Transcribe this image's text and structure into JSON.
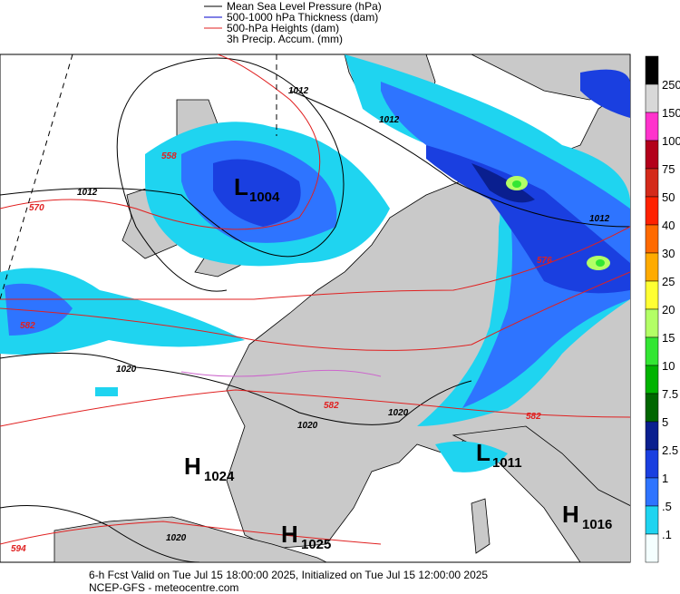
{
  "legend": [
    "Mean Sea Level Pressure (hPa)",
    "500-1000 hPa Thickness (dam)",
    "500-hPa Heights (dam)",
    "3h Precip. Accum. (mm)"
  ],
  "colorbar": {
    "labels": [
      "250",
      "150",
      "100",
      "75",
      "50",
      "40",
      "30",
      "25",
      "20",
      "15",
      "10",
      "7.5",
      "5",
      "2.5",
      "1",
      ".5",
      ".1"
    ],
    "colors": [
      "#000000",
      "#d8d8d8",
      "#ff33cc",
      "#b3001b",
      "#d42a1a",
      "#ff2200",
      "#ff6a00",
      "#ffab00",
      "#ffff33",
      "#b3ff66",
      "#33e633",
      "#00b300",
      "#006600",
      "#0a1f8f",
      "#1a3fe0",
      "#2e74ff",
      "#1fd4f0",
      "#f4ffff"
    ]
  },
  "centers": [
    {
      "symbol": "L",
      "value": "1004"
    },
    {
      "symbol": "L",
      "value": "1011"
    },
    {
      "symbol": "H",
      "value": "1024"
    },
    {
      "symbol": "H",
      "value": "1025"
    },
    {
      "symbol": "H",
      "value": "1016"
    }
  ],
  "contour_labels": [
    "1012",
    "1012",
    "1012",
    "1020",
    "1020",
    "1020",
    "1020",
    "1012",
    "570",
    "558",
    "582",
    "582",
    "582",
    "594",
    "576"
  ],
  "footer": [
    "6-h Fcst Valid on Tue Jul 15 18:00:00 2025, Initialized on Tue Jul 15 12:00:00 2025",
    "NCEP-GFS  - meteocentre.com"
  ]
}
